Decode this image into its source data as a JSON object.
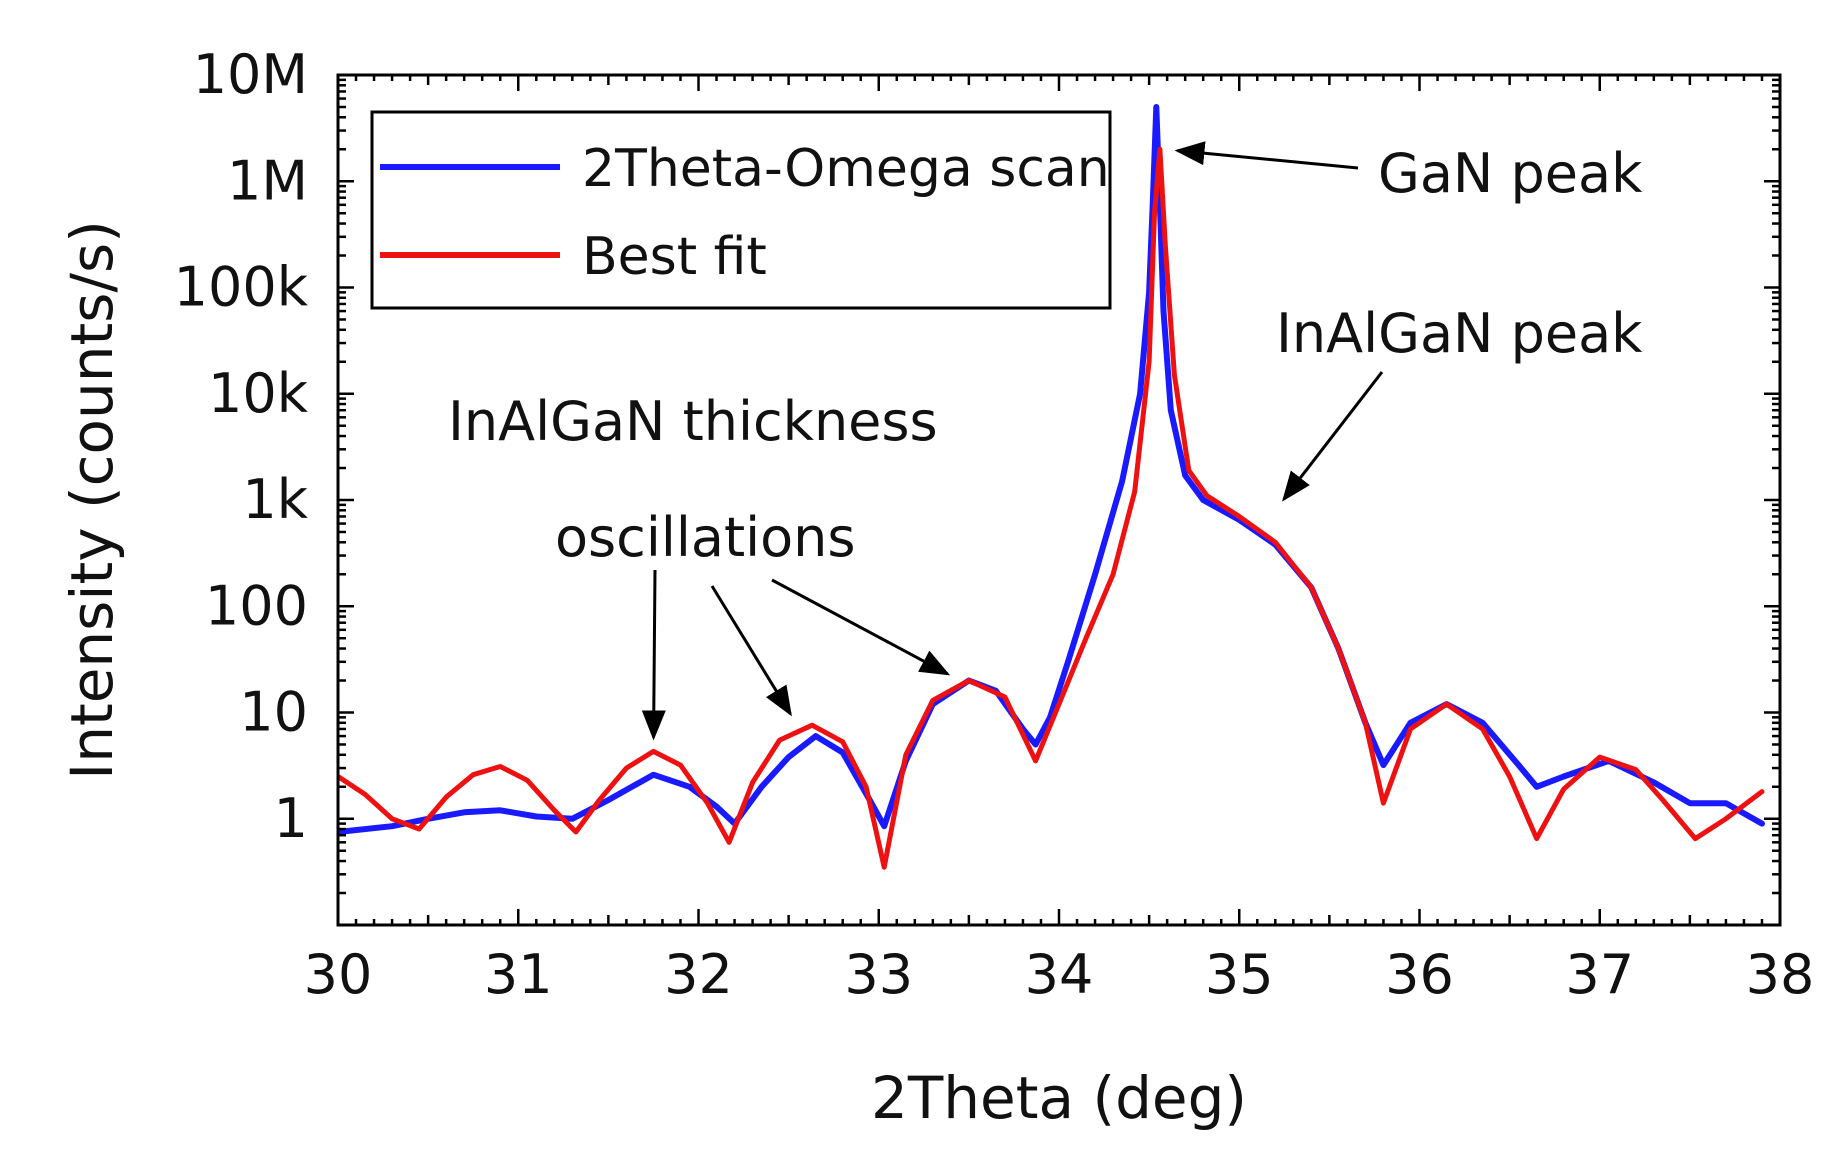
{
  "chart_data": {
    "type": "line",
    "title": "",
    "xlabel": "2Theta (deg)",
    "ylabel": "Intensity (counts/s)",
    "xlim": [
      30,
      38
    ],
    "ylim": [
      0.1,
      10000000
    ],
    "yscale": "log",
    "xticks": [
      30,
      31,
      32,
      33,
      34,
      35,
      36,
      37,
      38
    ],
    "xtick_labels": [
      "30",
      "31",
      "32",
      "33",
      "34",
      "35",
      "36",
      "37",
      "38"
    ],
    "yticks": [
      1,
      10,
      100,
      1000,
      10000,
      100000,
      1000000,
      10000000
    ],
    "ytick_labels": [
      "1",
      "10",
      "100",
      "1k",
      "10k",
      "100k",
      "1M",
      "10M"
    ],
    "grid": false,
    "legend_position": "top-left",
    "series": [
      {
        "name": "2Theta-Omega scan",
        "color": "#1a1aff",
        "x": [
          30.0,
          30.3,
          30.5,
          30.7,
          30.9,
          31.1,
          31.3,
          31.5,
          31.75,
          31.95,
          32.1,
          32.2,
          32.35,
          32.5,
          32.65,
          32.8,
          32.95,
          33.03,
          33.15,
          33.3,
          33.5,
          33.65,
          33.8,
          33.87,
          33.95,
          34.05,
          34.2,
          34.35,
          34.45,
          34.5,
          34.52,
          34.54,
          34.56,
          34.58,
          34.62,
          34.7,
          34.8,
          35.0,
          35.2,
          35.4,
          35.55,
          35.7,
          35.8,
          35.95,
          36.15,
          36.35,
          36.55,
          36.65,
          36.8,
          37.05,
          37.3,
          37.5,
          37.7,
          37.9
        ],
        "y": [
          0.75,
          0.85,
          1.0,
          1.15,
          1.2,
          1.05,
          1.0,
          1.5,
          2.6,
          2.0,
          1.3,
          0.9,
          2.0,
          3.8,
          6.0,
          4.2,
          1.5,
          0.85,
          3.5,
          12,
          20,
          16,
          7,
          5.0,
          9,
          30,
          200,
          1500,
          10000,
          90000,
          600000,
          5000000,
          600000,
          60000,
          7000,
          1700,
          1000,
          650,
          380,
          150,
          40,
          8,
          3.2,
          8,
          12,
          8,
          3.2,
          2.0,
          2.5,
          3.5,
          2.2,
          1.4,
          1.4,
          0.9
        ]
      },
      {
        "name": "Best fit",
        "color": "#ee1111",
        "x": [
          30.0,
          30.15,
          30.3,
          30.45,
          30.6,
          30.75,
          30.9,
          31.05,
          31.2,
          31.32,
          31.45,
          31.6,
          31.75,
          31.9,
          32.05,
          32.17,
          32.3,
          32.45,
          32.63,
          32.8,
          32.93,
          33.03,
          33.15,
          33.3,
          33.5,
          33.7,
          33.87,
          34.0,
          34.15,
          34.3,
          34.42,
          34.5,
          34.53,
          34.56,
          34.59,
          34.64,
          34.72,
          34.82,
          35.0,
          35.2,
          35.4,
          35.55,
          35.7,
          35.8,
          35.95,
          36.15,
          36.35,
          36.5,
          36.65,
          36.8,
          37.0,
          37.2,
          37.35,
          37.53,
          37.7,
          37.9
        ],
        "y": [
          2.5,
          1.7,
          1.0,
          0.8,
          1.6,
          2.6,
          3.1,
          2.3,
          1.2,
          0.75,
          1.5,
          3.0,
          4.3,
          3.2,
          1.4,
          0.6,
          2.2,
          5.5,
          7.6,
          5.3,
          2.0,
          0.35,
          4.0,
          13,
          20,
          14,
          3.5,
          12,
          50,
          200,
          1200,
          20000,
          500000,
          2000000,
          250000,
          15000,
          1900,
          1100,
          700,
          400,
          150,
          40,
          8,
          1.4,
          7,
          12,
          7,
          2.5,
          0.65,
          1.9,
          3.8,
          2.9,
          1.5,
          0.65,
          1.0,
          1.8
        ]
      }
    ],
    "annotations": [
      {
        "text": "GaN peak",
        "points_to": {
          "x": 34.58,
          "y": 2000000
        }
      },
      {
        "text": "InAlGaN peak",
        "points_to": {
          "x": 35.2,
          "y": 800
        }
      },
      {
        "text": "InAlGaN thickness",
        "points_to": null
      },
      {
        "text": "oscillations",
        "points_to": [
          {
            "x": 31.75,
            "y": 4.3
          },
          {
            "x": 32.55,
            "y": 7.5
          },
          {
            "x": 33.45,
            "y": 20
          }
        ]
      }
    ]
  }
}
